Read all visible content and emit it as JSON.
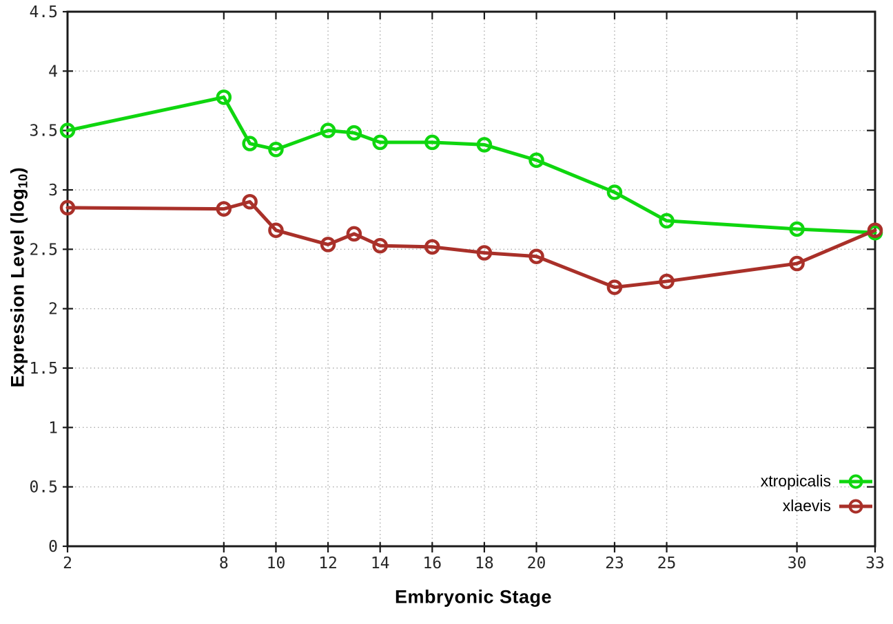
{
  "figure": {
    "background": "#ffffff",
    "x_axis_title": "Embryonic Stage",
    "y_axis_title_parts": {
      "prefix": "Expression Level (log",
      "sub": "10",
      "suffix": ")"
    }
  },
  "chart_data": {
    "type": "line",
    "title": "",
    "xlabel": "Embryonic Stage",
    "ylabel": "Expression Level (log10)",
    "xlim": [
      2,
      33
    ],
    "ylim": [
      0,
      4.5
    ],
    "x_ticks": [
      2,
      8,
      10,
      12,
      14,
      16,
      18,
      20,
      23,
      25,
      30,
      33
    ],
    "y_ticks": [
      0,
      0.5,
      1,
      1.5,
      2,
      2.5,
      3,
      3.5,
      4,
      4.5
    ],
    "grid": true,
    "legend_position": "bottom-right",
    "x": [
      2,
      8,
      9,
      10,
      12,
      13,
      14,
      16,
      18,
      20,
      23,
      25,
      30,
      33
    ],
    "series": [
      {
        "name": "xtropicalis",
        "color": "#0fd60f",
        "values": [
          3.5,
          3.78,
          3.39,
          3.34,
          3.5,
          3.48,
          3.4,
          3.4,
          3.38,
          3.25,
          2.98,
          2.74,
          2.67,
          2.64
        ]
      },
      {
        "name": "xlaevis",
        "color": "#a93029",
        "values": [
          2.85,
          2.84,
          2.9,
          2.66,
          2.54,
          2.63,
          2.53,
          2.52,
          2.47,
          2.44,
          2.18,
          2.23,
          2.38,
          2.66
        ]
      }
    ]
  },
  "legend": {
    "items": [
      {
        "label": "xtropicalis",
        "color": "#0fd60f"
      },
      {
        "label": "xlaevis",
        "color": "#a93029"
      }
    ]
  },
  "style": {
    "grid_color": "#ababab",
    "border_color": "#1a1a1a",
    "tick_color": "#1a1a1a",
    "tick_label_color": "#262626"
  }
}
